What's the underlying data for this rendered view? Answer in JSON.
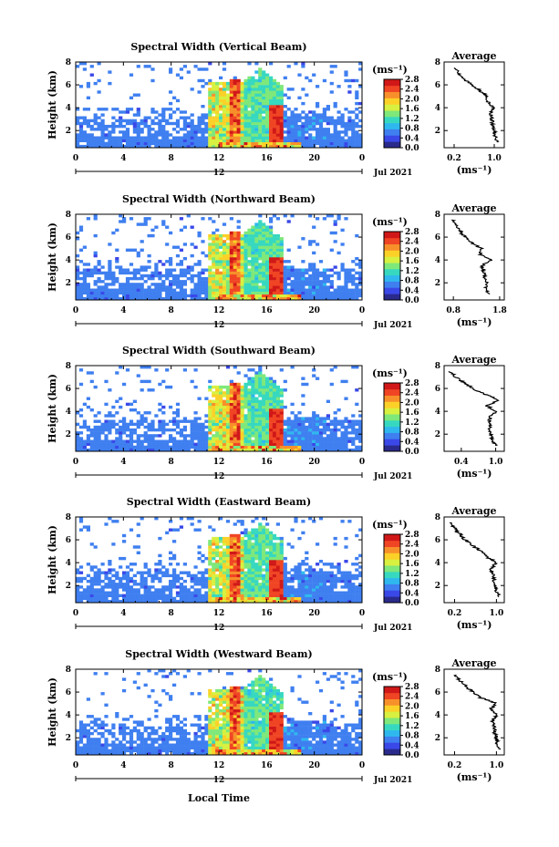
{
  "chart_data": {
    "type": "heatmap",
    "x_axis": {
      "label": "Local Time",
      "range": [
        0,
        24
      ],
      "tick_labels": [
        "0",
        "4",
        "8",
        "12",
        "16",
        "20",
        "0"
      ],
      "date_row_label": "12",
      "date_label": "Jul 2021"
    },
    "y_axis": {
      "label": "Height (km)",
      "range": [
        0.5,
        8
      ],
      "tick_labels": [
        "2",
        "4",
        "6",
        "8"
      ]
    },
    "colorbar": {
      "unit": "(ms⁻¹)",
      "range": [
        0,
        2.8
      ],
      "tick_labels": [
        "0.0",
        "0.4",
        "0.8",
        "1.2",
        "1.6",
        "2.0",
        "2.4",
        "2.8"
      ],
      "colors": [
        "#2a2a8c",
        "#3a48e8",
        "#3f7ff0",
        "#2fb8ee",
        "#37d8c0",
        "#7fe87a",
        "#d8f040",
        "#fbd128",
        "#f7902a",
        "#f04524",
        "#d01818"
      ]
    },
    "panels": [
      {
        "name": "vertical",
        "title": "Spectral Width (Vertical Beam)",
        "average": {
          "title": "Average",
          "xlabel": "(ms⁻¹)",
          "xticks": [
            "0.2",
            "1.0"
          ],
          "xrange": [
            0,
            1.2
          ],
          "heights": [
            1.0,
            1.5,
            2.0,
            2.5,
            3.0,
            3.5,
            4.0,
            4.5,
            5.0,
            5.5,
            6.0,
            6.5,
            7.0,
            7.5
          ],
          "values": [
            1.05,
            1.02,
            1.0,
            0.97,
            0.95,
            0.93,
            0.98,
            0.88,
            0.85,
            0.72,
            0.55,
            0.4,
            0.28,
            0.22
          ]
        }
      },
      {
        "name": "northward",
        "title": "Spectral Width (Northward Beam)",
        "average": {
          "title": "Average",
          "xlabel": "(ms⁻¹)",
          "xticks": [
            "0.8",
            "1.8"
          ],
          "xrange": [
            0.6,
            1.9
          ],
          "heights": [
            1.0,
            1.5,
            2.0,
            2.5,
            3.0,
            3.5,
            4.0,
            4.5,
            5.0,
            5.5,
            6.0,
            6.5,
            7.0,
            7.5
          ],
          "values": [
            1.55,
            1.5,
            1.52,
            1.48,
            1.45,
            1.42,
            1.6,
            1.38,
            1.4,
            1.2,
            1.05,
            0.95,
            0.85,
            0.8
          ]
        }
      },
      {
        "name": "southward",
        "title": "Spectral Width (Southward Beam)",
        "average": {
          "title": "Average",
          "xlabel": "(ms⁻¹)",
          "xticks": [
            "0.4",
            "1.0"
          ],
          "xrange": [
            0.1,
            1.15
          ],
          "heights": [
            1.0,
            1.5,
            2.0,
            2.5,
            3.0,
            3.5,
            4.0,
            4.5,
            5.0,
            5.5,
            6.0,
            6.5,
            7.0,
            7.5
          ],
          "values": [
            1.0,
            0.95,
            0.92,
            0.9,
            0.88,
            0.9,
            1.0,
            0.85,
            1.05,
            0.8,
            0.6,
            0.45,
            0.3,
            0.2
          ]
        }
      },
      {
        "name": "eastward",
        "title": "Spectral Width (Eastward Beam)",
        "average": {
          "title": "Average",
          "xlabel": "(ms⁻¹)",
          "xticks": [
            "0.2",
            "1.0"
          ],
          "xrange": [
            0,
            1.15
          ],
          "heights": [
            1.0,
            1.5,
            2.0,
            2.5,
            3.0,
            3.5,
            4.0,
            4.5,
            5.0,
            5.5,
            6.0,
            6.5,
            7.0,
            7.5
          ],
          "values": [
            1.05,
            1.0,
            0.98,
            0.95,
            0.93,
            0.9,
            1.0,
            0.82,
            0.7,
            0.55,
            0.4,
            0.3,
            0.2,
            0.12
          ]
        }
      },
      {
        "name": "westward",
        "title": "Spectral Width (Westward Beam)",
        "average": {
          "title": "Average",
          "xlabel": "(ms⁻¹)",
          "xticks": [
            "0.2",
            "1.0"
          ],
          "xrange": [
            0,
            1.15
          ],
          "heights": [
            1.0,
            1.5,
            2.0,
            2.5,
            3.0,
            3.5,
            4.0,
            4.5,
            5.0,
            5.5,
            6.0,
            6.5,
            7.0,
            7.5
          ],
          "values": [
            1.05,
            1.02,
            1.0,
            0.97,
            0.95,
            0.92,
            1.02,
            0.88,
            1.0,
            0.7,
            0.55,
            0.42,
            0.3,
            0.22
          ]
        }
      }
    ]
  }
}
